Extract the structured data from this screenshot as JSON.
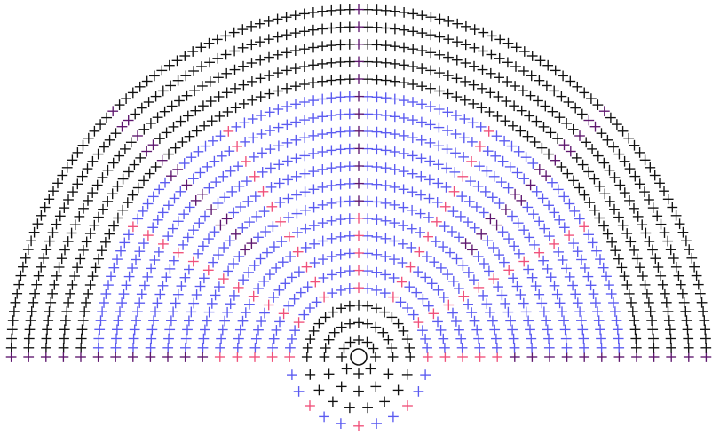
{
  "diagram": {
    "kind": "crochet-stitch-chart",
    "stitch_symbol": "plus",
    "colors": {
      "background": "#ffffff",
      "black": "#111111",
      "blue": "#5a5af0",
      "pink": "#f0507a",
      "purple": "#5e176e"
    },
    "center_marker": "magic-ring",
    "rounds_total": 20,
    "round_stitch_counts": [
      6,
      12,
      18,
      24,
      30,
      36,
      42,
      48,
      54,
      60,
      66,
      72,
      78,
      84,
      90,
      96,
      102,
      108,
      114,
      120
    ],
    "round_colors": [
      "black",
      "black",
      "black",
      "blue",
      "blue",
      "blue",
      "blue",
      "blue",
      "blue",
      "blue",
      "blue",
      "blue",
      "blue",
      "blue",
      "blue",
      "black",
      "black",
      "black",
      "black",
      "black"
    ],
    "accent_rays": [
      {
        "color": "pink",
        "angles_deg": [
          0,
          30,
          60,
          90,
          120,
          150,
          180
        ],
        "from_round": 4,
        "to_round": 15
      },
      {
        "color": "purple",
        "angles_deg": [
          0,
          45,
          90,
          135,
          180
        ],
        "from_round": 9,
        "to_round": 20
      }
    ],
    "lower_partial_rounds": 4
  }
}
